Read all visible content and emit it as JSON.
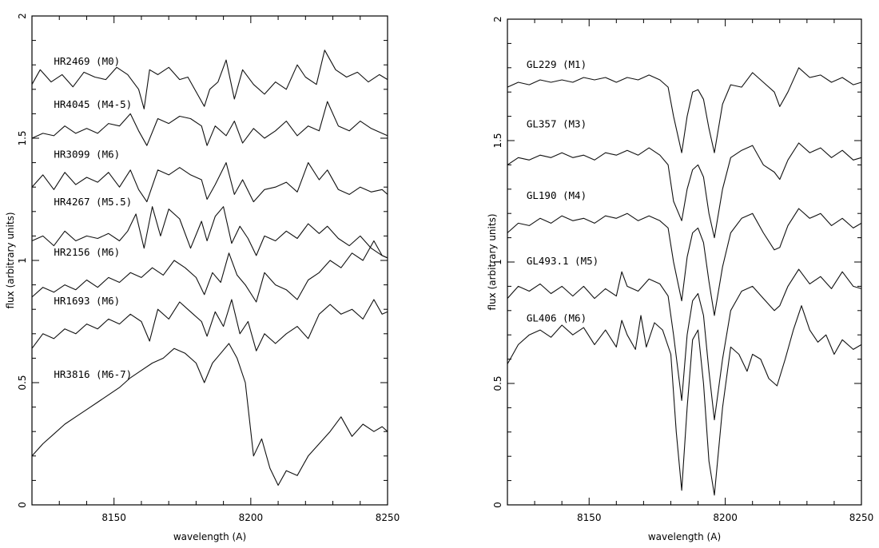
{
  "chart_data": [
    {
      "type": "line",
      "xlabel": "wavelength (A)",
      "ylabel": "flux (arbitrary units)",
      "xlim": [
        8120,
        8250
      ],
      "ylim": [
        0,
        2
      ],
      "xticks": [
        8150,
        8200,
        8250
      ],
      "yticks": [
        0,
        0.5,
        1,
        1.5,
        2
      ],
      "ytick_labels": [
        "0",
        "0.5",
        "1",
        "1.5",
        "2"
      ],
      "grid": false,
      "series": [
        {
          "name": "HR2469 (M0)",
          "x": [
            8120,
            8123,
            8127,
            8131,
            8135,
            8139,
            8143,
            8147,
            8151,
            8155,
            8159,
            8161,
            8163,
            8166,
            8170,
            8174,
            8177,
            8180,
            8183,
            8185,
            8188,
            8191,
            8194,
            8197,
            8201,
            8205,
            8209,
            8213,
            8217,
            8220,
            8224,
            8227,
            8231,
            8235,
            8239,
            8243,
            8247,
            8250
          ],
          "y": [
            1.72,
            1.78,
            1.73,
            1.76,
            1.71,
            1.77,
            1.75,
            1.74,
            1.79,
            1.76,
            1.7,
            1.62,
            1.78,
            1.76,
            1.79,
            1.74,
            1.75,
            1.69,
            1.63,
            1.7,
            1.73,
            1.82,
            1.66,
            1.78,
            1.72,
            1.68,
            1.73,
            1.7,
            1.8,
            1.75,
            1.72,
            1.86,
            1.78,
            1.75,
            1.77,
            1.73,
            1.76,
            1.74
          ],
          "label_pos": [
            8128,
            1.8
          ]
        },
        {
          "name": "HR4045 (M4-5)",
          "x": [
            8120,
            8124,
            8128,
            8132,
            8136,
            8140,
            8144,
            8148,
            8152,
            8156,
            8159,
            8162,
            8166,
            8170,
            8174,
            8178,
            8182,
            8184,
            8187,
            8191,
            8194,
            8197,
            8201,
            8205,
            8209,
            8213,
            8217,
            8221,
            8225,
            8228,
            8232,
            8236,
            8240,
            8244,
            8248,
            8250
          ],
          "y": [
            1.5,
            1.52,
            1.51,
            1.55,
            1.52,
            1.54,
            1.52,
            1.56,
            1.55,
            1.6,
            1.53,
            1.47,
            1.58,
            1.56,
            1.59,
            1.58,
            1.55,
            1.47,
            1.55,
            1.51,
            1.57,
            1.48,
            1.54,
            1.5,
            1.53,
            1.57,
            1.51,
            1.55,
            1.53,
            1.65,
            1.55,
            1.53,
            1.57,
            1.54,
            1.52,
            1.51
          ],
          "label_pos": [
            8128,
            1.625
          ]
        },
        {
          "name": "HR3099 (M6)",
          "x": [
            8120,
            8124,
            8128,
            8132,
            8136,
            8140,
            8144,
            8148,
            8152,
            8156,
            8159,
            8162,
            8166,
            8170,
            8174,
            8178,
            8182,
            8184,
            8187,
            8191,
            8194,
            8197,
            8201,
            8205,
            8209,
            8213,
            8217,
            8221,
            8225,
            8228,
            8232,
            8236,
            8240,
            8244,
            8248,
            8250
          ],
          "y": [
            1.3,
            1.35,
            1.29,
            1.36,
            1.31,
            1.34,
            1.32,
            1.36,
            1.3,
            1.37,
            1.29,
            1.24,
            1.37,
            1.35,
            1.38,
            1.35,
            1.33,
            1.25,
            1.31,
            1.4,
            1.27,
            1.33,
            1.24,
            1.29,
            1.3,
            1.32,
            1.28,
            1.4,
            1.33,
            1.37,
            1.29,
            1.27,
            1.3,
            1.28,
            1.29,
            1.27
          ],
          "label_pos": [
            8128,
            1.42
          ]
        },
        {
          "name": "HR4267 (M5.5)",
          "x": [
            8120,
            8124,
            8128,
            8132,
            8136,
            8140,
            8144,
            8148,
            8152,
            8155,
            8158,
            8161,
            8164,
            8167,
            8170,
            8174,
            8178,
            8182,
            8184,
            8187,
            8190,
            8193,
            8196,
            8199,
            8202,
            8205,
            8209,
            8213,
            8217,
            8221,
            8225,
            8228,
            8232,
            8236,
            8240,
            8244,
            8248,
            8250
          ],
          "y": [
            1.08,
            1.1,
            1.06,
            1.12,
            1.08,
            1.1,
            1.09,
            1.11,
            1.08,
            1.12,
            1.19,
            1.05,
            1.22,
            1.1,
            1.21,
            1.17,
            1.05,
            1.16,
            1.08,
            1.18,
            1.22,
            1.07,
            1.14,
            1.09,
            1.02,
            1.1,
            1.08,
            1.12,
            1.09,
            1.15,
            1.11,
            1.14,
            1.09,
            1.06,
            1.1,
            1.05,
            1.02,
            1.01
          ],
          "label_pos": [
            8128,
            1.225
          ]
        },
        {
          "name": "HR2156 (M6)",
          "x": [
            8120,
            8124,
            8128,
            8132,
            8136,
            8140,
            8144,
            8148,
            8152,
            8156,
            8160,
            8164,
            8168,
            8172,
            8176,
            8180,
            8183,
            8186,
            8189,
            8192,
            8195,
            8198,
            8202,
            8205,
            8209,
            8213,
            8217,
            8221,
            8225,
            8229,
            8233,
            8237,
            8241,
            8245,
            8248,
            8250
          ],
          "y": [
            0.85,
            0.89,
            0.87,
            0.9,
            0.88,
            0.92,
            0.89,
            0.93,
            0.91,
            0.95,
            0.93,
            0.97,
            0.94,
            1.0,
            0.97,
            0.93,
            0.86,
            0.95,
            0.91,
            1.03,
            0.94,
            0.9,
            0.83,
            0.95,
            0.9,
            0.88,
            0.84,
            0.92,
            0.95,
            1.0,
            0.97,
            1.03,
            1.0,
            1.08,
            1.02,
            1.01
          ],
          "label_pos": [
            8128,
            1.02
          ]
        },
        {
          "name": "HR1693 (M6)",
          "x": [
            8120,
            8124,
            8128,
            8132,
            8136,
            8140,
            8144,
            8148,
            8152,
            8156,
            8160,
            8163,
            8166,
            8170,
            8174,
            8178,
            8182,
            8184,
            8187,
            8190,
            8193,
            8196,
            8199,
            8202,
            8205,
            8209,
            8213,
            8217,
            8221,
            8225,
            8229,
            8233,
            8237,
            8241,
            8245,
            8248,
            8250
          ],
          "y": [
            0.64,
            0.7,
            0.68,
            0.72,
            0.7,
            0.74,
            0.72,
            0.76,
            0.74,
            0.78,
            0.75,
            0.67,
            0.8,
            0.76,
            0.83,
            0.79,
            0.75,
            0.69,
            0.79,
            0.73,
            0.84,
            0.7,
            0.75,
            0.63,
            0.7,
            0.66,
            0.7,
            0.73,
            0.68,
            0.78,
            0.82,
            0.78,
            0.8,
            0.76,
            0.84,
            0.78,
            0.79
          ],
          "label_pos": [
            8128,
            0.82
          ]
        },
        {
          "name": "HR3816 (M6-7)",
          "x": [
            8120,
            8124,
            8128,
            8132,
            8136,
            8140,
            8144,
            8148,
            8152,
            8156,
            8160,
            8164,
            8168,
            8172,
            8176,
            8180,
            8183,
            8186,
            8189,
            8192,
            8195,
            8198,
            8201,
            8204,
            8207,
            8210,
            8213,
            8217,
            8221,
            8225,
            8229,
            8233,
            8237,
            8241,
            8245,
            8248,
            8250
          ],
          "y": [
            0.2,
            0.25,
            0.29,
            0.33,
            0.36,
            0.39,
            0.42,
            0.45,
            0.48,
            0.52,
            0.55,
            0.58,
            0.6,
            0.64,
            0.62,
            0.58,
            0.5,
            0.58,
            0.62,
            0.66,
            0.6,
            0.5,
            0.2,
            0.27,
            0.15,
            0.08,
            0.14,
            0.12,
            0.2,
            0.25,
            0.3,
            0.36,
            0.28,
            0.33,
            0.3,
            0.32,
            0.3
          ],
          "label_pos": [
            8128,
            0.52
          ]
        }
      ]
    },
    {
      "type": "line",
      "xlabel": "wavelength (A)",
      "ylabel": "flux (arbitrary units)",
      "xlim": [
        8120,
        8250
      ],
      "ylim": [
        0,
        2
      ],
      "xticks": [
        8150,
        8200,
        8250
      ],
      "yticks": [
        0,
        0.5,
        1,
        1.5,
        2
      ],
      "ytick_labels": [
        "0",
        "0.5",
        "1",
        "1.5",
        "2"
      ],
      "grid": false,
      "series": [
        {
          "name": "GL229 (M1)",
          "x": [
            8120,
            8124,
            8128,
            8132,
            8136,
            8140,
            8144,
            8148,
            8152,
            8156,
            8160,
            8164,
            8168,
            8172,
            8176,
            8179,
            8181,
            8184,
            8186,
            8188,
            8190,
            8192,
            8194,
            8196,
            8199,
            8202,
            8206,
            8210,
            8214,
            8218,
            8220,
            8223,
            8227,
            8231,
            8235,
            8239,
            8243,
            8247,
            8250
          ],
          "y": [
            1.72,
            1.74,
            1.73,
            1.75,
            1.74,
            1.75,
            1.74,
            1.76,
            1.75,
            1.76,
            1.74,
            1.76,
            1.75,
            1.77,
            1.75,
            1.72,
            1.6,
            1.45,
            1.6,
            1.7,
            1.71,
            1.67,
            1.55,
            1.45,
            1.65,
            1.73,
            1.72,
            1.78,
            1.74,
            1.7,
            1.64,
            1.7,
            1.8,
            1.76,
            1.77,
            1.74,
            1.76,
            1.73,
            1.74
          ],
          "label_pos": [
            8127,
            1.8
          ]
        },
        {
          "name": "GL357 (M3)",
          "x": [
            8120,
            8124,
            8128,
            8132,
            8136,
            8140,
            8144,
            8148,
            8152,
            8156,
            8160,
            8164,
            8168,
            8172,
            8176,
            8179,
            8181,
            8184,
            8186,
            8188,
            8190,
            8192,
            8194,
            8196,
            8199,
            8202,
            8206,
            8210,
            8214,
            8218,
            8220,
            8223,
            8227,
            8231,
            8235,
            8239,
            8243,
            8247,
            8250
          ],
          "y": [
            1.4,
            1.43,
            1.42,
            1.44,
            1.43,
            1.45,
            1.43,
            1.44,
            1.42,
            1.45,
            1.44,
            1.46,
            1.44,
            1.47,
            1.44,
            1.4,
            1.25,
            1.17,
            1.3,
            1.38,
            1.4,
            1.35,
            1.2,
            1.1,
            1.3,
            1.43,
            1.46,
            1.48,
            1.4,
            1.37,
            1.34,
            1.42,
            1.49,
            1.45,
            1.47,
            1.43,
            1.46,
            1.42,
            1.43
          ],
          "label_pos": [
            8127,
            1.555
          ]
        },
        {
          "name": "GL190 (M4)",
          "x": [
            8120,
            8124,
            8128,
            8132,
            8136,
            8140,
            8144,
            8148,
            8152,
            8156,
            8160,
            8164,
            8168,
            8172,
            8176,
            8179,
            8181,
            8184,
            8186,
            8188,
            8190,
            8192,
            8194,
            8196,
            8199,
            8202,
            8206,
            8210,
            8214,
            8218,
            8220,
            8223,
            8227,
            8231,
            8235,
            8239,
            8243,
            8247,
            8250
          ],
          "y": [
            1.12,
            1.16,
            1.15,
            1.18,
            1.16,
            1.19,
            1.17,
            1.18,
            1.16,
            1.19,
            1.18,
            1.2,
            1.17,
            1.19,
            1.17,
            1.14,
            1.0,
            0.84,
            1.02,
            1.12,
            1.14,
            1.08,
            0.92,
            0.78,
            0.98,
            1.12,
            1.18,
            1.2,
            1.12,
            1.05,
            1.06,
            1.15,
            1.22,
            1.18,
            1.2,
            1.15,
            1.18,
            1.14,
            1.16
          ],
          "label_pos": [
            8127,
            1.26
          ]
        },
        {
          "name": "GL493.1 (M5)",
          "x": [
            8120,
            8124,
            8128,
            8132,
            8136,
            8140,
            8144,
            8148,
            8152,
            8156,
            8160,
            8162,
            8164,
            8168,
            8172,
            8176,
            8179,
            8181,
            8184,
            8186,
            8188,
            8190,
            8192,
            8194,
            8196,
            8199,
            8202,
            8206,
            8210,
            8214,
            8218,
            8220,
            8223,
            8227,
            8231,
            8235,
            8239,
            8243,
            8247,
            8250
          ],
          "y": [
            0.85,
            0.9,
            0.88,
            0.91,
            0.87,
            0.9,
            0.86,
            0.9,
            0.85,
            0.89,
            0.86,
            0.96,
            0.9,
            0.88,
            0.93,
            0.91,
            0.86,
            0.7,
            0.43,
            0.7,
            0.84,
            0.87,
            0.78,
            0.55,
            0.35,
            0.6,
            0.8,
            0.88,
            0.9,
            0.85,
            0.8,
            0.82,
            0.9,
            0.97,
            0.91,
            0.94,
            0.89,
            0.96,
            0.9,
            0.89
          ],
          "label_pos": [
            8127,
            0.99
          ]
        },
        {
          "name": "GL406 (M6)",
          "x": [
            8120,
            8124,
            8128,
            8132,
            8136,
            8140,
            8144,
            8148,
            8152,
            8156,
            8160,
            8162,
            8164,
            8167,
            8169,
            8171,
            8174,
            8177,
            8180,
            8182,
            8184,
            8186,
            8188,
            8190,
            8192,
            8194,
            8196,
            8199,
            8202,
            8205,
            8208,
            8210,
            8213,
            8216,
            8219,
            8222,
            8225,
            8228,
            8231,
            8234,
            8237,
            8240,
            8243,
            8247,
            8250
          ],
          "y": [
            0.58,
            0.66,
            0.7,
            0.72,
            0.69,
            0.74,
            0.7,
            0.73,
            0.66,
            0.72,
            0.65,
            0.76,
            0.7,
            0.64,
            0.78,
            0.65,
            0.75,
            0.72,
            0.62,
            0.3,
            0.06,
            0.4,
            0.68,
            0.72,
            0.5,
            0.18,
            0.04,
            0.4,
            0.65,
            0.62,
            0.55,
            0.62,
            0.6,
            0.52,
            0.49,
            0.6,
            0.72,
            0.82,
            0.72,
            0.67,
            0.7,
            0.62,
            0.68,
            0.64,
            0.66
          ],
          "label_pos": [
            8127,
            0.755
          ]
        }
      ]
    }
  ]
}
